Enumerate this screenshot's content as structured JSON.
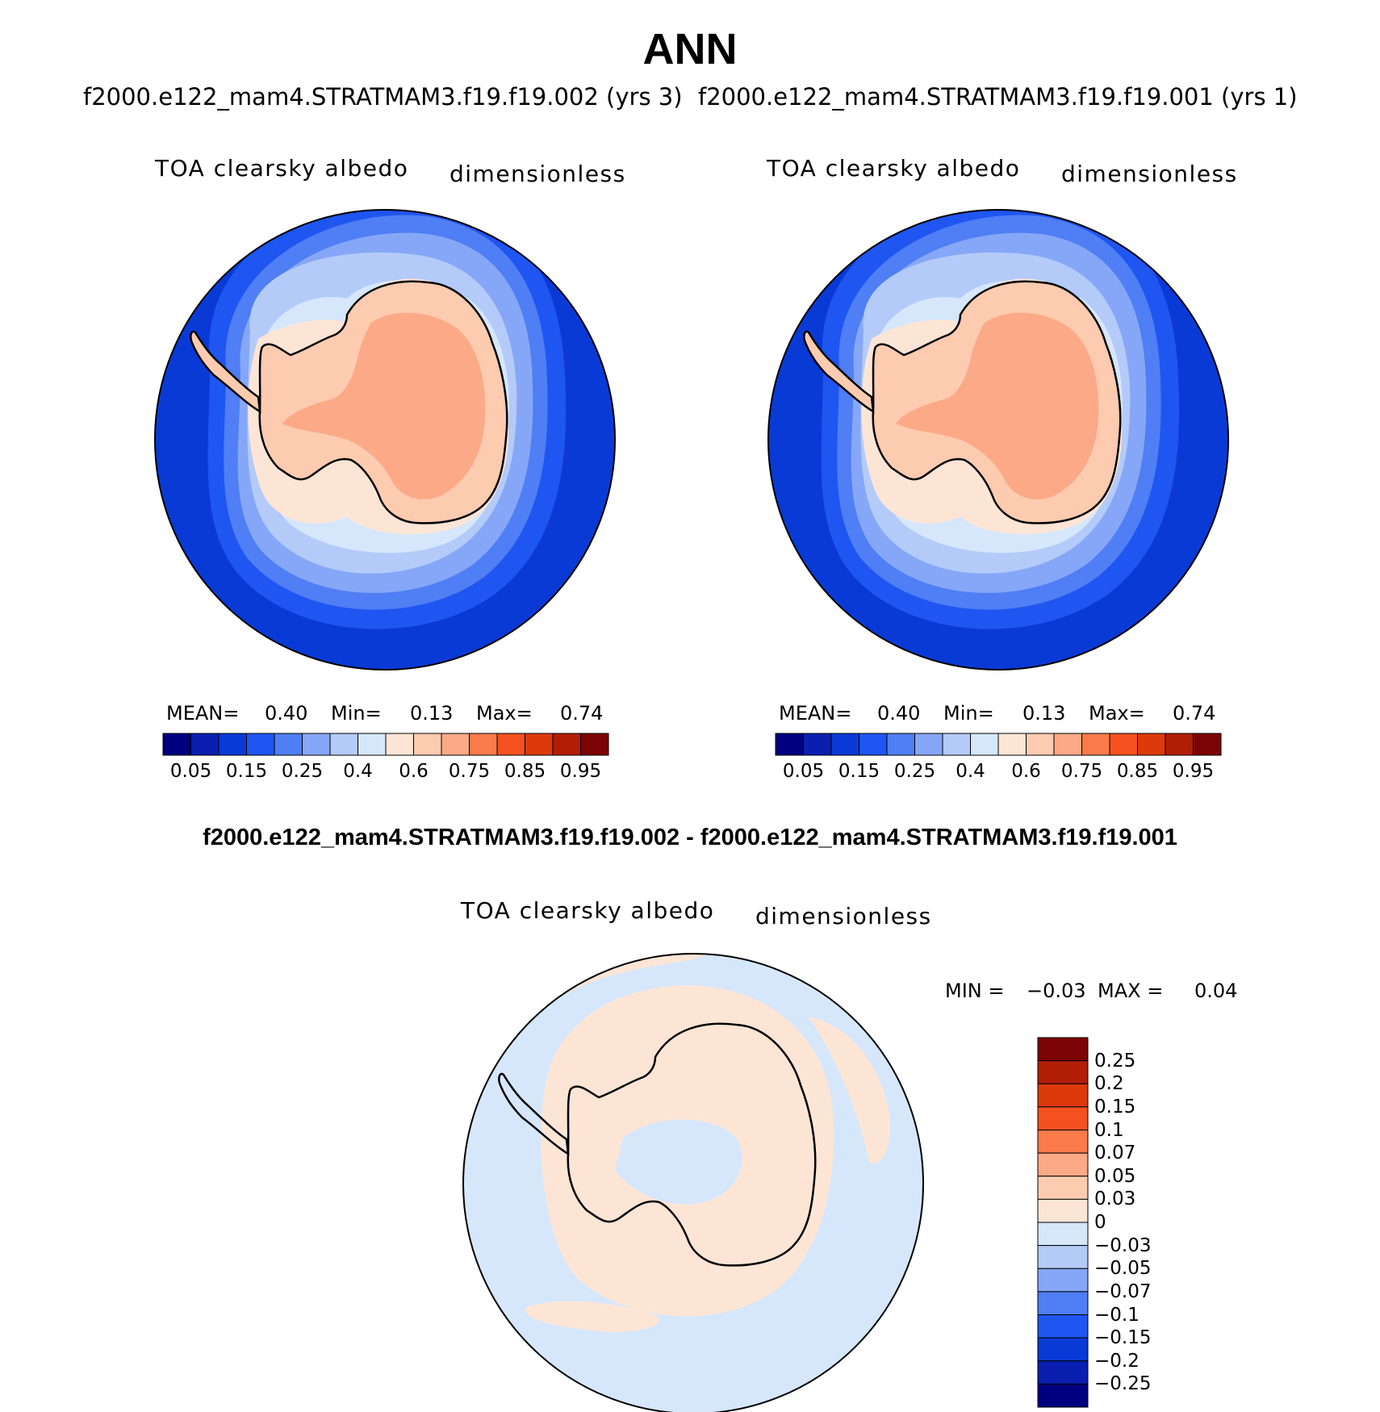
{
  "title": "ANN",
  "panels": [
    {
      "case_title": "f2000.e122_mam4.STRATMAM3.f19.f19.002 (yrs 3)",
      "variable": "TOA clearsky albedo",
      "units": "dimensionless",
      "stats": {
        "mean_label": "MEAN=",
        "mean": "0.40",
        "min_label": "Min=",
        "min": "0.13",
        "max_label": "Max=",
        "max": "0.74"
      }
    },
    {
      "case_title": "f2000.e122_mam4.STRATMAM3.f19.f19.001 (yrs 1)",
      "variable": "TOA clearsky albedo",
      "units": "dimensionless",
      "stats": {
        "mean_label": "MEAN=",
        "mean": "0.40",
        "min_label": "Min=",
        "min": "0.13",
        "max_label": "Max=",
        "max": "0.74"
      }
    }
  ],
  "colorbar": {
    "colors": [
      "#000080",
      "#0a1fb0",
      "#0a3ad6",
      "#1f55f0",
      "#4f7ef5",
      "#86a7f7",
      "#b4cbf9",
      "#d6e7fb",
      "#fde5d6",
      "#fccbb0",
      "#fba987",
      "#fb7a4a",
      "#f5511e",
      "#dd3a0c",
      "#b21d06",
      "#7d0404"
    ],
    "tick_labels": [
      "0.05",
      "0.15",
      "0.25",
      "0.4",
      "0.6",
      "0.75",
      "0.85",
      "0.95"
    ]
  },
  "difference": {
    "title": "f2000.e122_mam4.STRATMAM3.f19.f19.002 - f2000.e122_mam4.STRATMAM3.f19.f19.001",
    "variable": "TOA clearsky albedo",
    "units": "dimensionless",
    "min_label": "MIN =",
    "min": "−0.03",
    "max_label": "MAX =",
    "max": "0.04",
    "colorbar": {
      "colors_top_to_bottom": [
        "#7d0404",
        "#b21d06",
        "#dd3a0c",
        "#f5511e",
        "#fb7a4a",
        "#fba987",
        "#fccbb0",
        "#fde5d6",
        "#d6e7fb",
        "#b4cbf9",
        "#86a7f7",
        "#4f7ef5",
        "#1f55f0",
        "#0a3ad6",
        "#0a1fb0",
        "#000080"
      ],
      "tick_labels": [
        "0.25",
        "0.2",
        "0.15",
        "0.1",
        "0.07",
        "0.05",
        "0.03",
        "0",
        "−0.03",
        "−0.05",
        "−0.07",
        "−0.1",
        "−0.15",
        "−0.2",
        "−0.25"
      ]
    }
  }
}
